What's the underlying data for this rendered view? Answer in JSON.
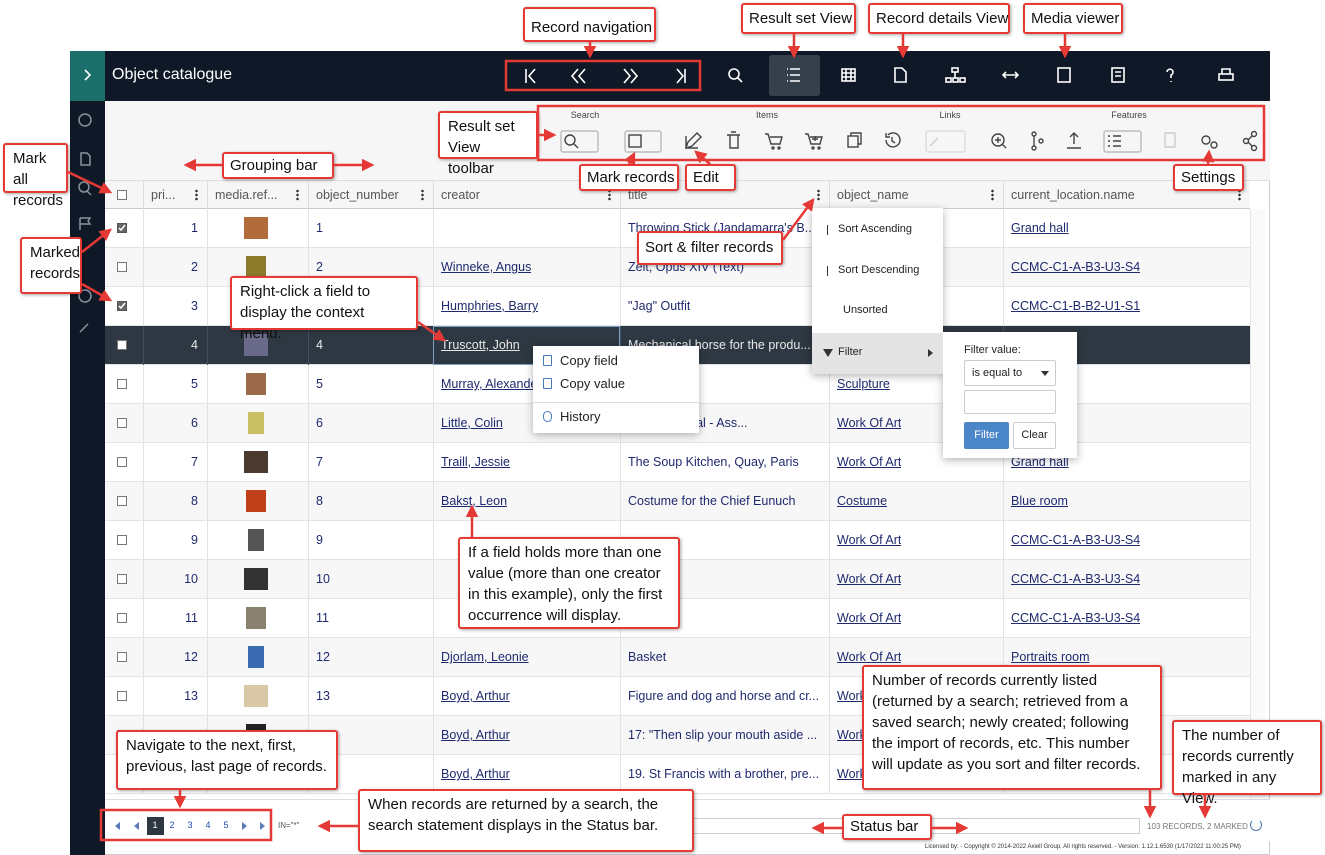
{
  "header": {
    "title": "Object catalogue"
  },
  "toolbar": {
    "groups": [
      "Search",
      "Items",
      "Links",
      "Features"
    ]
  },
  "table": {
    "columns": [
      "pri...",
      "media.ref...",
      "object_number",
      "creator",
      "title",
      "object_name",
      "current_location.name"
    ],
    "rows": [
      {
        "number": 1,
        "object_number": 1,
        "creator": null,
        "title": "Throwing Stick (Jandamarra's B...",
        "object_name": null,
        "location": "Grand hall",
        "marked": true
      },
      {
        "number": 2,
        "object_number": 2,
        "creator": "Winneke, Angus",
        "title": "Zeit, Opus XIV (Text)",
        "object_name": null,
        "location": "CCMC-C1-A-B3-U3-S4",
        "marked": false
      },
      {
        "number": 3,
        "object_number": 3,
        "creator": "Humphries, Barry",
        "title": "\"Jag\" Outfit",
        "object_name": null,
        "location": "CCMC-C1-B-B2-U1-S1",
        "marked": true
      },
      {
        "number": 4,
        "object_number": 4,
        "creator": "Truscott, John",
        "title": "Mechanical horse for the produ...",
        "object_name": null,
        "location": null,
        "marked": false,
        "selected": true
      },
      {
        "number": 5,
        "object_number": 5,
        "creator": "Murray, Alexander",
        "title": null,
        "object_name": "Sculpture",
        "location": null,
        "marked": false
      },
      {
        "number": 6,
        "object_number": 6,
        "creator": "Little, Colin",
        "title": "Package Deal - Ass...",
        "object_name": "Work Of Art",
        "location": null,
        "marked": false
      },
      {
        "number": 7,
        "object_number": 7,
        "creator": "Traill, Jessie",
        "title": "The Soup Kitchen, Quay, Paris",
        "object_name": "Work Of Art",
        "location": "Grand hall",
        "marked": false
      },
      {
        "number": 8,
        "object_number": 8,
        "creator": "Bakst, Leon",
        "title": "Costume for the Chief Eunuch",
        "object_name": "Costume",
        "location": "Blue room",
        "marked": false
      },
      {
        "number": 9,
        "object_number": 9,
        "creator": null,
        "title": null,
        "object_name": "Work Of Art",
        "location": "CCMC-C1-A-B3-U3-S4",
        "marked": false
      },
      {
        "number": 10,
        "object_number": 10,
        "creator": null,
        "title": null,
        "object_name": "Work Of Art",
        "location": "CCMC-C1-A-B3-U3-S4",
        "marked": false
      },
      {
        "number": 11,
        "object_number": 11,
        "creator": null,
        "title": null,
        "object_name": "Work Of Art",
        "location": "CCMC-C1-A-B3-U3-S4",
        "marked": false
      },
      {
        "number": 12,
        "object_number": 12,
        "creator": "Djorlam, Leonie",
        "title": "Basket",
        "object_name": "Work Of Art",
        "location": "Portraits room",
        "marked": false
      },
      {
        "number": 13,
        "object_number": 13,
        "creator": "Boyd, Arthur",
        "title": "Figure and dog and horse and cr...",
        "object_name": "Work Of Art",
        "location": null,
        "marked": false
      },
      {
        "number": null,
        "object_number": null,
        "creator": "Boyd, Arthur",
        "title": "17: \"Then slip your mouth aside ...",
        "object_name": "Work Of Art",
        "location": null,
        "marked": false
      },
      {
        "number": null,
        "object_number": null,
        "creator": "Boyd, Arthur",
        "title": "19. St Francis with a brother, pre...",
        "object_name": "Work Of Art",
        "location": null,
        "marked": false
      }
    ]
  },
  "context_menu": {
    "items": [
      "Copy field",
      "Copy value",
      "History"
    ]
  },
  "sort_menu": {
    "items": [
      "Sort Ascending",
      "Sort Descending",
      "Unsorted",
      "Filter"
    ]
  },
  "filter_popup": {
    "label": "Filter value:",
    "operator": "is equal to",
    "buttons": [
      "Filter",
      "Clear"
    ]
  },
  "pagination": {
    "pages": [
      1,
      2,
      3,
      4,
      5
    ]
  },
  "status_bar": {
    "search": "IN=\"*\"",
    "records": "103 RECORDS, 2 MARKED"
  },
  "footer": "Licensed by: - Copyright © 2014-2022 Axiell Group. All rights reserved. - Version: 1.12.1.6530 (1/17/2022 11:00:25 PM)",
  "callouts": [
    "Record navigation",
    "Result set View",
    "Record details View",
    "Media viewer",
    "Result set View toolbar",
    "Grouping bar",
    "Mark all records",
    "Marked records",
    "Mark records",
    "Edit",
    "Settings",
    "Sort & filter records",
    "Right-click a field to display the context menu.",
    "If a field holds more than one value (more than one creator in this example), only the first occurrence will display.",
    "Number of records currently listed (returned by a search; retrieved from a saved search; newly created; following the import of records, etc. This number will update as you sort and filter records.",
    "The number of records currently marked in any View.",
    "Navigate to the next, first, previous, last page of records.",
    "When records are returned by a search, the search statement displays in the Status bar.",
    "Status bar"
  ]
}
